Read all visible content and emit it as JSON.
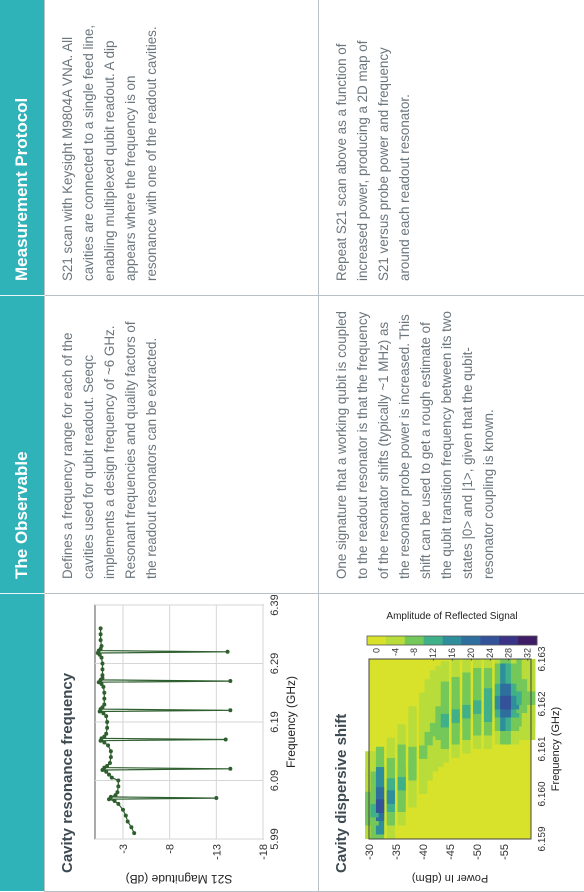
{
  "table": {
    "headers": [
      "",
      "The Observable",
      "Measurement Protocol"
    ],
    "rows": [
      {
        "title": "Cavity resonance frequency",
        "observable": "Defines a frequency range for each of the cavities used for qubit readout. Seeqc implements a design frequency of ~6 GHz. Resonant frequencies and quality factors of the readout resonators can be extracted.",
        "protocol": "S21 scan with Keysight M9804A VNA. All cavities are connected to a single feed line, enabling multiplexed qubit readout. A dip appears where the frequency is on resonance with one of the readout cavities."
      },
      {
        "title": "Cavity dispersive shift",
        "observable": "One signature that a working qubit is coupled to the readout resonator is that the frequency of the resonator shifts (typically ~1 MHz) as the resonator probe power is increased. This shift can be used to get a rough estimate of the qubit transition frequency between its two states |0> and |1>, given that the qubit-resonator coupling is known.",
        "protocol": "Repeat S21 scan above as a function of increased power, producing a 2D map of S21 versus probe power and frequency around each readout resonator."
      }
    ]
  },
  "chart_data": [
    {
      "type": "line",
      "title": "Cavity resonance frequency",
      "xlabel": "Frequency (GHz)",
      "ylabel": "S21 Magnitude (dB)",
      "xlim": [
        5.99,
        6.39
      ],
      "ylim": [
        -18,
        0
      ],
      "xticks": [
        "5.99",
        "6.09",
        "6.19",
        "6.29",
        "6.39"
      ],
      "yticks": [
        "-3",
        "-8",
        "-13",
        "-18"
      ],
      "grid": true,
      "color": "#2f5f2f",
      "series": [
        {
          "x": [
            6.0,
            6.01,
            6.02,
            6.03,
            6.04,
            6.05,
            6.055,
            6.058,
            6.06,
            6.062,
            6.065,
            6.07,
            6.08,
            6.09,
            6.095,
            6.1,
            6.105,
            6.108,
            6.11,
            6.112,
            6.115,
            6.12,
            6.13,
            6.14,
            6.15,
            6.155,
            6.158,
            6.16,
            6.162,
            6.165,
            6.17,
            6.18,
            6.19,
            6.2,
            6.205,
            6.208,
            6.21,
            6.212,
            6.215,
            6.22,
            6.23,
            6.24,
            6.25,
            6.255,
            6.258,
            6.26,
            6.262,
            6.265,
            6.27,
            6.28,
            6.29,
            6.3,
            6.305,
            6.308,
            6.31,
            6.312,
            6.315,
            6.32,
            6.33,
            6.34,
            6.35
          ],
          "y": [
            -4.2,
            -3.9,
            -3.5,
            -3.3,
            -3.0,
            -2.5,
            -2.1,
            -1.5,
            -13.0,
            -1.7,
            -2.2,
            -2.4,
            -2.5,
            -2.5,
            -1.8,
            -1.5,
            -1.2,
            -0.8,
            -14.5,
            -1.0,
            -1.3,
            -1.6,
            -1.7,
            -1.7,
            -1.4,
            -1.0,
            -0.6,
            -14.0,
            -0.7,
            -1.0,
            -1.2,
            -1.3,
            -1.3,
            -1.2,
            -0.9,
            -0.5,
            -14.5,
            -0.6,
            -0.8,
            -1.0,
            -1.0,
            -1.0,
            -0.9,
            -0.7,
            -0.4,
            -14.5,
            -0.6,
            -0.8,
            -0.8,
            -0.8,
            -0.8,
            -0.7,
            -0.5,
            -0.3,
            -14.2,
            -0.4,
            -0.6,
            -0.7,
            -0.6,
            -0.6,
            -0.6
          ]
        }
      ]
    },
    {
      "type": "heatmap",
      "title": "Cavity dispersive shift",
      "xlabel": "Frequency (GHz)",
      "ylabel": "Power In (dBm)",
      "xlim": [
        6.159,
        6.163
      ],
      "ylim": [
        -60,
        -30
      ],
      "xticks": [
        "6.159",
        "6.160",
        "6.161",
        "6.162",
        "6.163"
      ],
      "yticks": [
        "-30",
        "-35",
        "-40",
        "-45",
        "-50",
        "-55"
      ],
      "colorbar_label": "Amplitude of Reflected Signal",
      "colorbar_ticks": [
        "0",
        "-4",
        "-8",
        "-12",
        "-16",
        "-20",
        "-24",
        "-28",
        "-32"
      ],
      "colors": [
        "#d8e22a",
        "#b8dc3a",
        "#74c85a",
        "#3fb08a",
        "#2f8e9c",
        "#2f6f9e",
        "#34529a",
        "#3a3386",
        "#3e1c66"
      ],
      "ridge": {
        "power": [
          -30,
          -31,
          -32,
          -34,
          -36,
          -38,
          -40,
          -41,
          -42,
          -43,
          -44,
          -46,
          -48,
          -50,
          -52,
          -54,
          -55,
          -56,
          -57,
          -58,
          -59,
          -60
        ],
        "freq": [
          6.1596,
          6.1596,
          6.1597,
          6.1599,
          6.1602,
          6.1606,
          6.1609,
          6.1612,
          6.1614,
          6.1615,
          6.1616,
          6.1617,
          6.1618,
          6.1619,
          6.1619,
          6.162,
          6.162,
          6.162,
          6.162,
          6.1621,
          6.1621,
          6.1621
        ],
        "depth": [
          -8,
          -10,
          -24,
          -14,
          -10,
          -8,
          -6,
          -6,
          -7,
          -9,
          -10,
          -10,
          -10,
          -11,
          -12,
          -16,
          -24,
          -22,
          -14,
          -10,
          -8,
          -6
        ]
      }
    }
  ]
}
